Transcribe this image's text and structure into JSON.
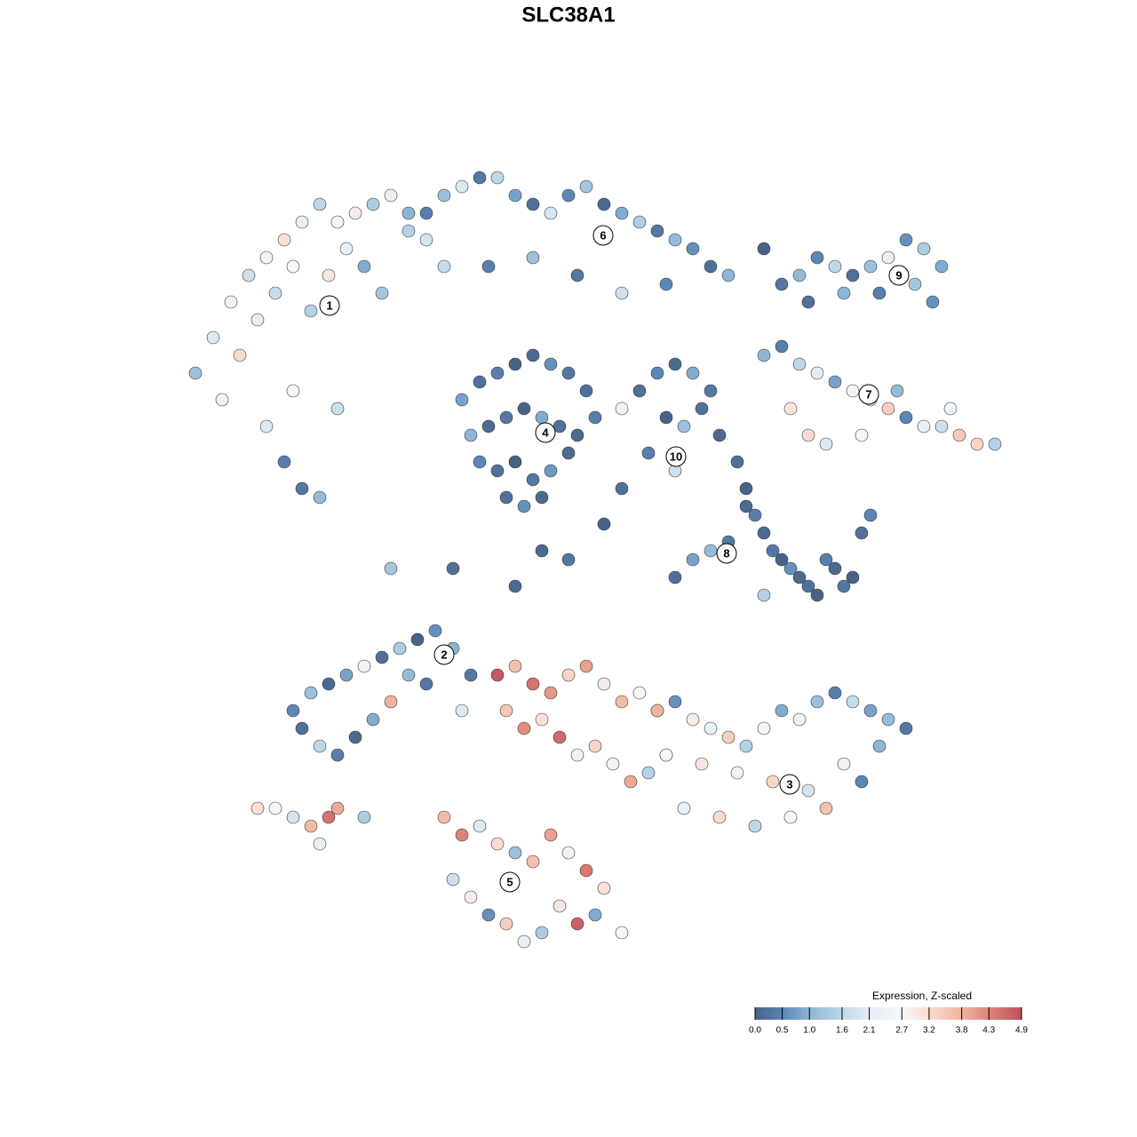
{
  "chart_data": {
    "type": "scatter",
    "title": "SLC38A1",
    "xlim": [
      19,
      115
    ],
    "ylim": [
      110,
      18
    ],
    "x": [
      22,
      24,
      26,
      28,
      30,
      32,
      34,
      36,
      38,
      40,
      42,
      44,
      46,
      48,
      25,
      27,
      29,
      31,
      33,
      35,
      37,
      39,
      41,
      43,
      30,
      32,
      34,
      36,
      33,
      38,
      46,
      48,
      50,
      52,
      54,
      56,
      58,
      60,
      62,
      64,
      66,
      68,
      70,
      72,
      74,
      76,
      78,
      80,
      82,
      50,
      55,
      60,
      65,
      70,
      75,
      52,
      54,
      56,
      58,
      60,
      62,
      64,
      66,
      53,
      55,
      57,
      59,
      61,
      63,
      65,
      54,
      56,
      58,
      60,
      62,
      64,
      57,
      59,
      61,
      67,
      72,
      74,
      76,
      78,
      80,
      75,
      77,
      79,
      73,
      76,
      70,
      81,
      88,
      90,
      92,
      94,
      96,
      98,
      100,
      102,
      104,
      106,
      91,
      95,
      99,
      103,
      105,
      86,
      88,
      90,
      92,
      94,
      96,
      98,
      100,
      102,
      104,
      106,
      108,
      110,
      112,
      89,
      91,
      93,
      97,
      101,
      107,
      83,
      84,
      85,
      86,
      87,
      88,
      89,
      90,
      91,
      92,
      93,
      94,
      95,
      96,
      97,
      98,
      80,
      82,
      84,
      78,
      76,
      86,
      33,
      35,
      37,
      39,
      41,
      43,
      45,
      47,
      49,
      51,
      53,
      34,
      36,
      38,
      40,
      42,
      44,
      48,
      52,
      46,
      74,
      76,
      78,
      80,
      82,
      84,
      86,
      88,
      90,
      92,
      94,
      96,
      98,
      100,
      102,
      75,
      79,
      83,
      87,
      91,
      95,
      99,
      77,
      81,
      85,
      89,
      93,
      97,
      56,
      58,
      60,
      62,
      64,
      66,
      68,
      70,
      72,
      74,
      57,
      59,
      61,
      63,
      65,
      67,
      69,
      71,
      73,
      75,
      50,
      52,
      54,
      56,
      58,
      60,
      62,
      64,
      66,
      68,
      51,
      53,
      55,
      57,
      59,
      61,
      63,
      65,
      67,
      70,
      29,
      31,
      33,
      35,
      37,
      38,
      36,
      41,
      44,
      51,
      58,
      64,
      68,
      70,
      61,
      86
    ],
    "y": [
      42,
      38,
      34,
      31,
      29,
      27,
      25,
      23,
      25,
      24,
      23,
      22,
      24,
      27,
      45,
      40,
      36,
      33,
      30,
      35,
      31,
      28,
      30,
      33,
      48,
      52,
      55,
      56,
      44,
      46,
      26,
      24,
      22,
      21,
      20,
      20,
      22,
      23,
      24,
      22,
      21,
      23,
      24,
      25,
      26,
      27,
      28,
      30,
      31,
      30,
      30,
      29,
      31,
      33,
      32,
      45,
      43,
      42,
      41,
      40,
      41,
      42,
      44,
      49,
      48,
      47,
      46,
      47,
      48,
      49,
      52,
      53,
      52,
      54,
      53,
      51,
      56,
      57,
      56,
      47,
      44,
      42,
      41,
      42,
      44,
      47,
      48,
      46,
      51,
      53,
      46,
      49,
      32,
      31,
      29,
      30,
      31,
      30,
      29,
      27,
      28,
      30,
      34,
      33,
      33,
      32,
      34,
      40,
      39,
      41,
      42,
      43,
      44,
      45,
      46,
      47,
      48,
      48,
      49,
      50,
      50,
      46,
      49,
      50,
      49,
      44,
      46,
      52,
      55,
      58,
      60,
      62,
      63,
      64,
      65,
      66,
      67,
      63,
      64,
      66,
      65,
      60,
      58,
      62,
      61,
      57,
      63,
      65,
      67,
      80,
      78,
      77,
      76,
      75,
      74,
      73,
      72,
      71,
      73,
      76,
      82,
      84,
      85,
      83,
      81,
      79,
      77,
      80,
      76,
      80,
      79,
      81,
      82,
      83,
      84,
      82,
      80,
      81,
      79,
      78,
      79,
      80,
      81,
      82,
      85,
      86,
      87,
      88,
      89,
      86,
      84,
      91,
      92,
      93,
      92,
      91,
      88,
      76,
      75,
      77,
      78,
      76,
      75,
      77,
      79,
      78,
      80,
      80,
      82,
      81,
      83,
      85,
      84,
      86,
      88,
      87,
      85,
      92,
      94,
      93,
      95,
      96,
      97,
      94,
      96,
      98,
      100,
      99,
      101,
      103,
      104,
      106,
      105,
      102,
      104,
      103,
      105,
      91,
      91,
      92,
      93,
      92,
      91,
      95,
      92,
      64,
      64,
      66,
      63,
      59,
      55,
      62,
      28
    ],
    "values": [
      1.2,
      2.0,
      2.8,
      1.8,
      2.5,
      3.1,
      2.2,
      1.6,
      2.6,
      2.9,
      1.4,
      2.3,
      1.0,
      1.9,
      2.4,
      3.2,
      2.1,
      1.7,
      2.7,
      1.5,
      3.0,
      2.2,
      0.9,
      1.3,
      2.0,
      0.4,
      0.3,
      1.1,
      2.6,
      1.8,
      1.5,
      0.4,
      1.2,
      2.0,
      0.3,
      1.6,
      0.8,
      0.2,
      1.9,
      0.5,
      1.3,
      0.1,
      0.9,
      1.4,
      0.3,
      1.1,
      0.6,
      0.2,
      1.0,
      1.7,
      0.4,
      1.2,
      0.3,
      1.8,
      0.5,
      0.8,
      0.2,
      0.4,
      0.0,
      0.1,
      0.6,
      0.3,
      0.2,
      1.0,
      0.1,
      0.3,
      0.0,
      0.9,
      0.2,
      0.1,
      0.5,
      0.2,
      0.0,
      0.3,
      0.7,
      0.1,
      0.2,
      0.6,
      0.1,
      0.4,
      0.2,
      0.5,
      0.1,
      0.9,
      0.3,
      0.0,
      1.2,
      0.2,
      0.4,
      1.8,
      2.8,
      0.1,
      0.3,
      1.1,
      0.5,
      1.6,
      0.2,
      1.2,
      2.2,
      0.6,
      1.4,
      0.9,
      0.2,
      1.0,
      0.4,
      1.3,
      0.6,
      1.0,
      0.4,
      1.6,
      2.1,
      0.8,
      2.6,
      1.9,
      3.4,
      0.5,
      2.3,
      1.8,
      3.5,
      3.3,
      1.5,
      3.0,
      3.2,
      2.0,
      2.6,
      1.1,
      2.4,
      0.2,
      0.0,
      0.4,
      0.1,
      0.3,
      0.0,
      0.6,
      0.1,
      0.2,
      0.0,
      0.4,
      0.1,
      0.3,
      0.0,
      0.2,
      0.5,
      1.1,
      0.3,
      0.1,
      0.8,
      0.2,
      1.5,
      0.5,
      1.2,
      0.1,
      0.8,
      2.5,
      0.2,
      1.4,
      0.0,
      0.6,
      1.0,
      0.3,
      0.2,
      1.6,
      0.4,
      0.1,
      0.9,
      3.8,
      0.3,
      2.0,
      1.1,
      1.8,
      0.6,
      2.9,
      2.2,
      3.4,
      1.5,
      2.6,
      0.9,
      2.4,
      1.2,
      0.4,
      1.7,
      0.8,
      1.1,
      0.3,
      2.1,
      3.0,
      2.5,
      3.3,
      1.9,
      2.8,
      1.0,
      2.3,
      3.2,
      1.6,
      2.7,
      3.6,
      0.5,
      4.8,
      3.6,
      4.5,
      4.1,
      3.3,
      4.0,
      2.9,
      3.7,
      2.6,
      3.8,
      3.5,
      4.2,
      3.1,
      4.6,
      2.4,
      3.3,
      2.8,
      3.9,
      1.5,
      2.7,
      3.7,
      4.3,
      2.0,
      3.2,
      1.2,
      3.6,
      4.0,
      2.5,
      4.4,
      3.1,
      1.8,
      2.9,
      0.6,
      3.4,
      2.2,
      1.4,
      3.0,
      4.7,
      0.9,
      2.6,
      3.1,
      2.6,
      1.9,
      3.7,
      4.5,
      3.9,
      2.3,
      1.4,
      1.3,
      0.2,
      0.1,
      0.3,
      0.0,
      0.2,
      0.1,
      0.0
    ],
    "annotations": [
      {
        "text": "1",
        "x": 37.1,
        "y": 34.4
      },
      {
        "text": "2",
        "x": 50.0,
        "y": 73.7
      },
      {
        "text": "3",
        "x": 88.9,
        "y": 88.3
      },
      {
        "text": "4",
        "x": 61.4,
        "y": 48.7
      },
      {
        "text": "5",
        "x": 57.4,
        "y": 99.3
      },
      {
        "text": "6",
        "x": 67.9,
        "y": 26.5
      },
      {
        "text": "7",
        "x": 97.8,
        "y": 44.4
      },
      {
        "text": "8",
        "x": 81.8,
        "y": 62.3
      },
      {
        "text": "9",
        "x": 101.2,
        "y": 31.0
      },
      {
        "text": "10",
        "x": 76.1,
        "y": 51.4
      }
    ],
    "colorbar": {
      "title": "Expression, Z-scaled",
      "clim": [
        0,
        4.9
      ],
      "ticks": [
        {
          "value": 0,
          "label": "0.0"
        },
        0.5,
        {
          "value": 1,
          "label": "1.0"
        },
        1.6,
        2.1,
        2.7,
        3.2,
        3.8,
        4.3,
        4.9
      ],
      "colors": [
        "#476387",
        "#5b86b5",
        "#8bb6d6",
        "#bcd8e8",
        "#e3eef5",
        "#f7f7f7",
        "#f9dccf",
        "#f0b49e",
        "#dd8378",
        "#c2505c"
      ]
    }
  }
}
